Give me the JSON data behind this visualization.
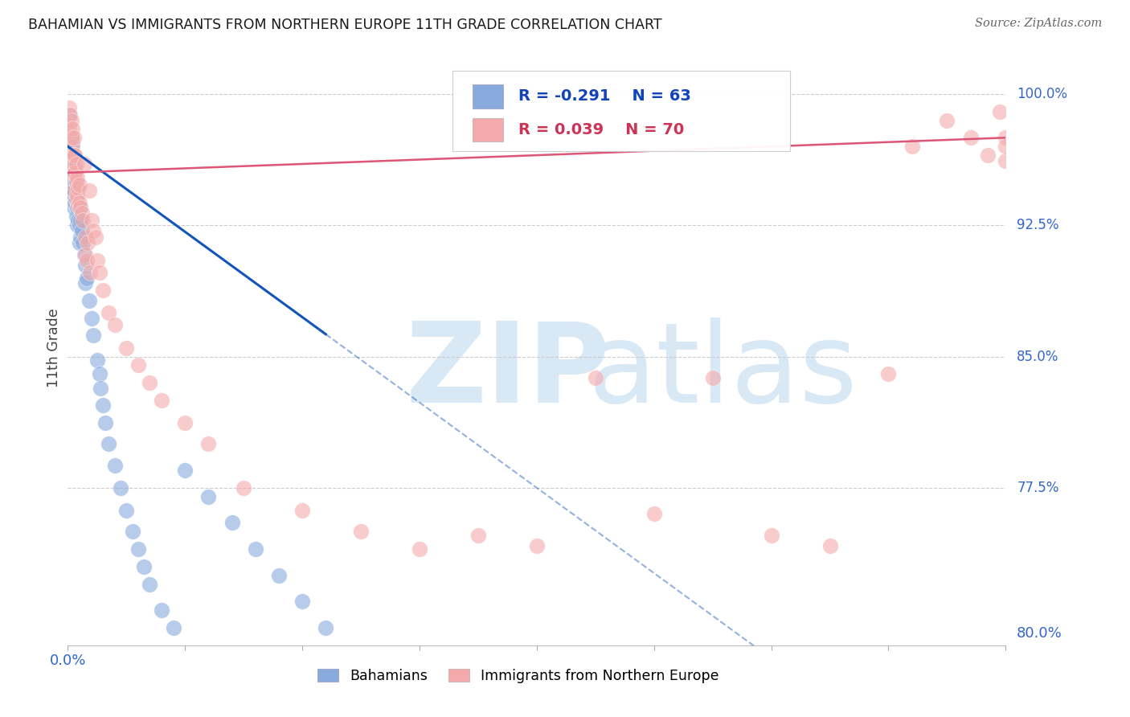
{
  "title": "BAHAMIAN VS IMMIGRANTS FROM NORTHERN EUROPE 11TH GRADE CORRELATION CHART",
  "source": "Source: ZipAtlas.com",
  "ylabel": "11th Grade",
  "xlim": [
    0.0,
    0.8
  ],
  "ylim": [
    0.685,
    1.025
  ],
  "ytick_vals": [
    1.0,
    0.925,
    0.85,
    0.775
  ],
  "ytick_labels": [
    "100.0%",
    "92.5%",
    "85.0%",
    "77.5%"
  ],
  "blue_label": "Bahamians",
  "pink_label": "Immigrants from Northern Europe",
  "blue_R": -0.291,
  "blue_N": 63,
  "pink_R": 0.039,
  "pink_N": 70,
  "blue_color": "#88AADD",
  "pink_color": "#F4AAAA",
  "blue_line_color": "#1155BB",
  "pink_line_color": "#DD5577",
  "blue_x": [
    0.001,
    0.001,
    0.002,
    0.003,
    0.003,
    0.003,
    0.003,
    0.003,
    0.004,
    0.004,
    0.004,
    0.004,
    0.005,
    0.005,
    0.005,
    0.005,
    0.006,
    0.006,
    0.006,
    0.007,
    0.007,
    0.007,
    0.008,
    0.008,
    0.008,
    0.009,
    0.009,
    0.01,
    0.01,
    0.01,
    0.011,
    0.011,
    0.012,
    0.013,
    0.014,
    0.015,
    0.015,
    0.016,
    0.018,
    0.02,
    0.022,
    0.025,
    0.027,
    0.028,
    0.03,
    0.032,
    0.035,
    0.04,
    0.045,
    0.05,
    0.055,
    0.06,
    0.065,
    0.07,
    0.08,
    0.09,
    0.1,
    0.12,
    0.14,
    0.16,
    0.18,
    0.2,
    0.22
  ],
  "blue_y": [
    0.988,
    0.975,
    0.978,
    0.975,
    0.968,
    0.96,
    0.952,
    0.944,
    0.972,
    0.962,
    0.952,
    0.942,
    0.965,
    0.955,
    0.945,
    0.935,
    0.958,
    0.948,
    0.938,
    0.95,
    0.94,
    0.93,
    0.945,
    0.935,
    0.925,
    0.938,
    0.928,
    0.935,
    0.925,
    0.915,
    0.928,
    0.918,
    0.922,
    0.915,
    0.908,
    0.902,
    0.892,
    0.895,
    0.882,
    0.872,
    0.862,
    0.848,
    0.84,
    0.832,
    0.822,
    0.812,
    0.8,
    0.788,
    0.775,
    0.762,
    0.75,
    0.74,
    0.73,
    0.72,
    0.705,
    0.695,
    0.785,
    0.77,
    0.755,
    0.74,
    0.725,
    0.71,
    0.695
  ],
  "pink_x": [
    0.001,
    0.001,
    0.002,
    0.002,
    0.003,
    0.003,
    0.003,
    0.003,
    0.004,
    0.004,
    0.004,
    0.005,
    0.005,
    0.005,
    0.005,
    0.006,
    0.006,
    0.007,
    0.007,
    0.007,
    0.008,
    0.008,
    0.009,
    0.009,
    0.01,
    0.01,
    0.011,
    0.012,
    0.013,
    0.014,
    0.015,
    0.015,
    0.016,
    0.017,
    0.018,
    0.019,
    0.02,
    0.022,
    0.024,
    0.025,
    0.027,
    0.03,
    0.035,
    0.04,
    0.05,
    0.06,
    0.07,
    0.08,
    0.1,
    0.12,
    0.15,
    0.2,
    0.25,
    0.3,
    0.35,
    0.4,
    0.45,
    0.5,
    0.55,
    0.6,
    0.65,
    0.7,
    0.72,
    0.75,
    0.77,
    0.785,
    0.795,
    0.8,
    0.8,
    0.8
  ],
  "pink_y": [
    0.992,
    0.982,
    0.988,
    0.978,
    0.985,
    0.975,
    0.965,
    0.955,
    0.98,
    0.97,
    0.96,
    0.975,
    0.965,
    0.955,
    0.945,
    0.965,
    0.955,
    0.96,
    0.95,
    0.94,
    0.952,
    0.942,
    0.946,
    0.936,
    0.948,
    0.938,
    0.935,
    0.932,
    0.928,
    0.96,
    0.918,
    0.908,
    0.905,
    0.915,
    0.945,
    0.898,
    0.928,
    0.922,
    0.918,
    0.905,
    0.898,
    0.888,
    0.875,
    0.868,
    0.855,
    0.845,
    0.835,
    0.825,
    0.812,
    0.8,
    0.775,
    0.762,
    0.75,
    0.74,
    0.748,
    0.742,
    0.838,
    0.76,
    0.838,
    0.748,
    0.742,
    0.84,
    0.97,
    0.985,
    0.975,
    0.965,
    0.99,
    0.975,
    0.962,
    0.97
  ]
}
